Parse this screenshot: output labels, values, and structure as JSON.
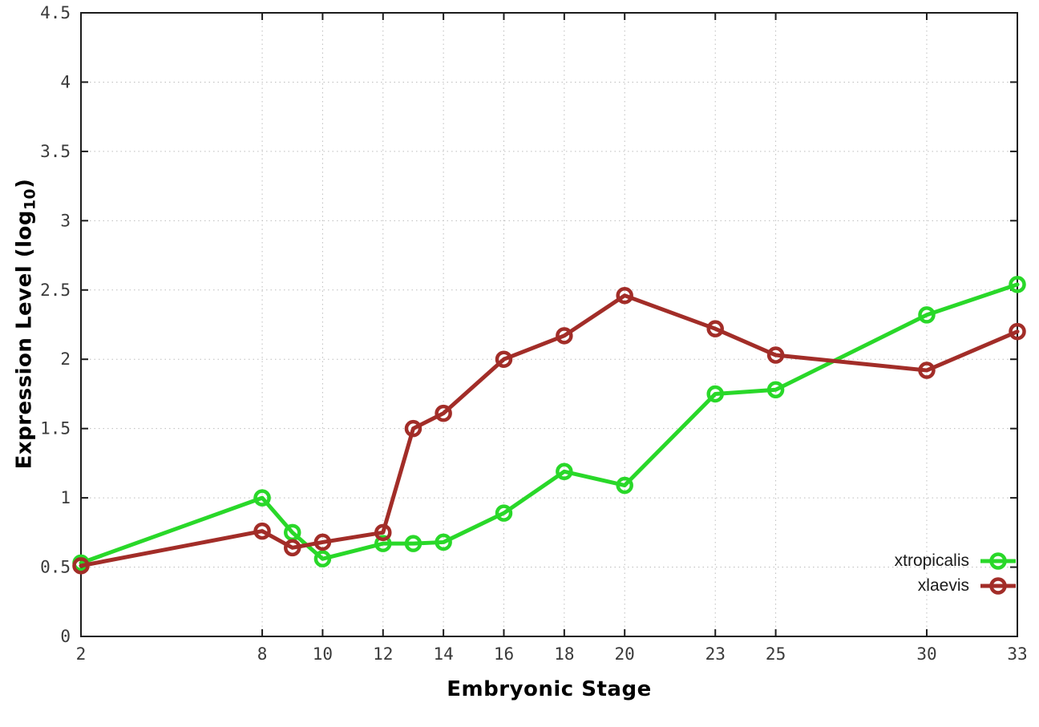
{
  "chart_data": {
    "type": "line",
    "title": "",
    "xlabel": "Embryonic Stage",
    "ylabel": "Expression Level (log10)",
    "ylabel_parts": {
      "prefix": "Expression Level (log",
      "sub": "10",
      "suffix": ")"
    },
    "x": [
      2,
      8,
      9,
      10,
      12,
      13,
      14,
      16,
      18,
      20,
      23,
      25,
      30,
      33
    ],
    "series": [
      {
        "name": "xtropicalis",
        "color": "#29d829",
        "values": [
          0.53,
          1.0,
          0.75,
          0.56,
          0.67,
          0.67,
          0.68,
          0.89,
          1.19,
          1.09,
          1.75,
          1.78,
          2.32,
          2.54
        ]
      },
      {
        "name": "xlaevis",
        "color": "#a22d28",
        "values": [
          0.51,
          0.76,
          0.64,
          0.68,
          0.75,
          1.5,
          1.61,
          2.0,
          2.17,
          2.46,
          2.22,
          2.03,
          1.92,
          2.2
        ]
      }
    ],
    "x_ticks": [
      2,
      8,
      10,
      12,
      14,
      16,
      18,
      20,
      23,
      25,
      30,
      33
    ],
    "x_tick_labels": [
      "2",
      "8",
      "10",
      "12",
      "14",
      "16",
      "18",
      "20",
      "23",
      "25",
      "30",
      "33"
    ],
    "y_ticks": [
      0,
      0.5,
      1,
      1.5,
      2,
      2.5,
      3,
      3.5,
      4,
      4.5
    ],
    "y_tick_labels": [
      "0",
      "0.5",
      "1",
      "1.5",
      "2",
      "2.5",
      "3",
      "3.5",
      "4",
      "4.5"
    ],
    "xlim": [
      2,
      33
    ],
    "ylim": [
      0,
      4.5
    ],
    "grid": true,
    "legend_position": "bottom-right",
    "marker": "open-circle"
  },
  "styles": {
    "background": "#ffffff",
    "grid_color": "#bdbdbd",
    "border_color": "#1c1c1c",
    "tick_label_color": "#3a3a3a",
    "axis_title_color": "#000000"
  }
}
